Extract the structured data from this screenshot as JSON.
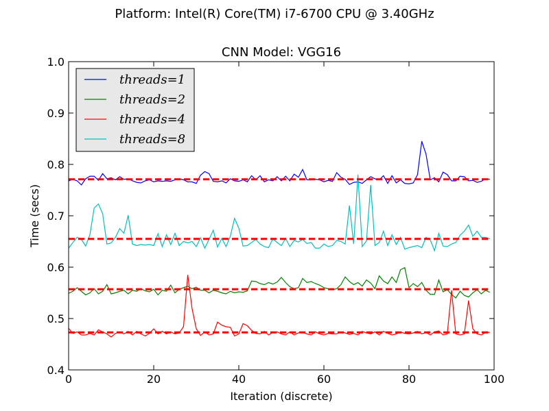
{
  "chart_data": {
    "type": "line",
    "suptitle": "Platform: Intel(R) Core(TM) i7-6700 CPU @ 3.40GHz",
    "title": "CNN Model: VGG16",
    "xlabel": "Iteration (discrete)",
    "ylabel": "Time (secs)",
    "xlim": [
      0,
      100
    ],
    "ylim": [
      0.4,
      1.0
    ],
    "xticks": [
      0,
      20,
      40,
      60,
      80,
      100
    ],
    "yticks": [
      0.4,
      0.5,
      0.6,
      0.7,
      0.8,
      0.9,
      1.0
    ],
    "xtick_labels": [
      "0",
      "20",
      "40",
      "60",
      "80",
      "100"
    ],
    "ytick_labels": [
      "0.4",
      "0.5",
      "0.6",
      "0.7",
      "0.8",
      "0.9",
      "1.0"
    ],
    "grid": false,
    "legend_position": "top-left",
    "series": [
      {
        "name": "threads = 1",
        "legend_math": "threads=1",
        "color": "#0000ff",
        "mean": 0.771,
        "values": [
          0.768,
          0.771,
          0.768,
          0.76,
          0.772,
          0.777,
          0.777,
          0.769,
          0.782,
          0.772,
          0.774,
          0.77,
          0.776,
          0.771,
          0.772,
          0.768,
          0.765,
          0.764,
          0.768,
          0.77,
          0.766,
          0.768,
          0.767,
          0.768,
          0.767,
          0.77,
          0.772,
          0.77,
          0.766,
          0.766,
          0.763,
          0.779,
          0.786,
          0.782,
          0.767,
          0.766,
          0.768,
          0.764,
          0.772,
          0.768,
          0.767,
          0.77,
          0.766,
          0.778,
          0.77,
          0.778,
          0.766,
          0.77,
          0.768,
          0.776,
          0.768,
          0.777,
          0.768,
          0.781,
          0.775,
          0.79,
          0.77,
          0.77,
          0.771,
          0.77,
          0.766,
          0.769,
          0.767,
          0.784,
          0.775,
          0.771,
          0.761,
          0.765,
          0.766,
          0.763,
          0.77,
          0.776,
          0.772,
          0.77,
          0.778,
          0.763,
          0.778,
          0.764,
          0.77,
          0.763,
          0.762,
          0.764,
          0.78,
          0.845,
          0.82,
          0.77,
          0.774,
          0.766,
          0.785,
          0.78,
          0.768,
          0.768,
          0.777,
          0.776,
          0.768,
          0.769,
          0.765,
          0.767,
          0.772,
          0.771
        ]
      },
      {
        "name": "threads = 2",
        "legend_math": "threads=2",
        "color": "#008000",
        "mean": 0.557,
        "values": [
          0.549,
          0.553,
          0.56,
          0.553,
          0.546,
          0.55,
          0.558,
          0.548,
          0.553,
          0.566,
          0.548,
          0.55,
          0.553,
          0.555,
          0.548,
          0.555,
          0.553,
          0.558,
          0.554,
          0.552,
          0.557,
          0.546,
          0.555,
          0.553,
          0.565,
          0.55,
          0.557,
          0.56,
          0.563,
          0.558,
          0.561,
          0.555,
          0.555,
          0.55,
          0.555,
          0.553,
          0.55,
          0.548,
          0.553,
          0.55,
          0.552,
          0.551,
          0.554,
          0.573,
          0.572,
          0.568,
          0.566,
          0.57,
          0.567,
          0.571,
          0.58,
          0.57,
          0.562,
          0.558,
          0.56,
          0.578,
          0.57,
          0.572,
          0.568,
          0.565,
          0.56,
          0.558,
          0.556,
          0.558,
          0.566,
          0.581,
          0.572,
          0.566,
          0.57,
          0.563,
          0.575,
          0.569,
          0.558,
          0.583,
          0.573,
          0.568,
          0.581,
          0.57,
          0.595,
          0.599,
          0.56,
          0.568,
          0.562,
          0.57,
          0.555,
          0.547,
          0.547,
          0.575,
          0.552,
          0.556,
          0.547,
          0.54,
          0.553,
          0.545,
          0.542,
          0.55,
          0.556,
          0.548,
          0.555,
          0.551
        ]
      },
      {
        "name": "threads = 4",
        "legend_math": "threads=4",
        "color": "#ff0000",
        "mean": 0.473,
        "values": [
          0.481,
          0.471,
          0.474,
          0.468,
          0.468,
          0.471,
          0.468,
          0.478,
          0.474,
          0.47,
          0.464,
          0.471,
          0.474,
          0.47,
          0.475,
          0.468,
          0.475,
          0.47,
          0.466,
          0.471,
          0.48,
          0.47,
          0.475,
          0.47,
          0.474,
          0.47,
          0.472,
          0.484,
          0.585,
          0.52,
          0.48,
          0.467,
          0.474,
          0.468,
          0.47,
          0.493,
          0.487,
          0.484,
          0.483,
          0.466,
          0.47,
          0.49,
          0.486,
          0.477,
          0.471,
          0.47,
          0.475,
          0.468,
          0.473,
          0.474,
          0.47,
          0.468,
          0.474,
          0.468,
          0.472,
          0.473,
          0.47,
          0.468,
          0.474,
          0.47,
          0.468,
          0.471,
          0.47,
          0.47,
          0.474,
          0.472,
          0.469,
          0.471,
          0.468,
          0.475,
          0.472,
          0.47,
          0.474,
          0.468,
          0.475,
          0.471,
          0.468,
          0.47,
          0.474,
          0.471,
          0.47,
          0.472,
          0.475,
          0.47,
          0.473,
          0.468,
          0.474,
          0.476,
          0.468,
          0.47,
          0.555,
          0.47,
          0.468,
          0.47,
          0.535,
          0.48,
          0.47,
          0.468,
          0.473,
          0.473
        ]
      },
      {
        "name": "threads = 8",
        "legend_math": "threads=8",
        "color": "#00bfbf",
        "mean": 0.655,
        "values": [
          0.637,
          0.648,
          0.658,
          0.654,
          0.641,
          0.663,
          0.715,
          0.723,
          0.704,
          0.645,
          0.647,
          0.658,
          0.675,
          0.666,
          0.701,
          0.645,
          0.642,
          0.644,
          0.643,
          0.644,
          0.642,
          0.665,
          0.64,
          0.663,
          0.644,
          0.666,
          0.642,
          0.65,
          0.647,
          0.65,
          0.64,
          0.657,
          0.637,
          0.654,
          0.672,
          0.639,
          0.656,
          0.64,
          0.66,
          0.695,
          0.676,
          0.641,
          0.642,
          0.648,
          0.654,
          0.645,
          0.64,
          0.638,
          0.655,
          0.648,
          0.642,
          0.656,
          0.64,
          0.652,
          0.649,
          0.654,
          0.646,
          0.648,
          0.637,
          0.637,
          0.645,
          0.64,
          0.642,
          0.652,
          0.65,
          0.645,
          0.72,
          0.645,
          0.78,
          0.64,
          0.651,
          0.76,
          0.642,
          0.648,
          0.67,
          0.642,
          0.663,
          0.644,
          0.658,
          0.635,
          0.638,
          0.64,
          0.642,
          0.638,
          0.658,
          0.653,
          0.632,
          0.666,
          0.641,
          0.64,
          0.645,
          0.648,
          0.662,
          0.67,
          0.682,
          0.66,
          0.67,
          0.658,
          0.658,
          0.655
        ]
      }
    ]
  }
}
